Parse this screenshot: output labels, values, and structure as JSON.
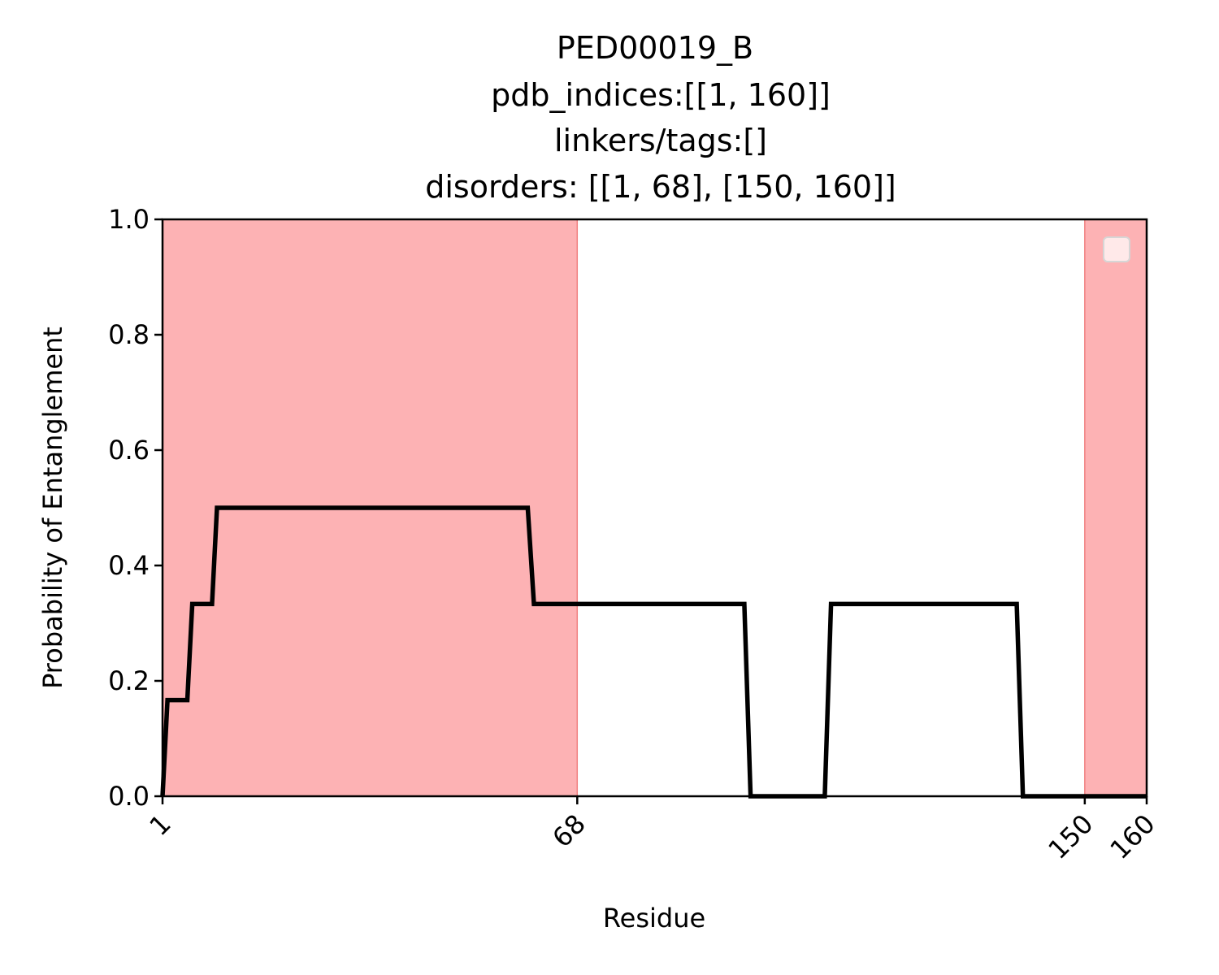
{
  "chart_data": {
    "type": "line",
    "title_lines": [
      "PED00019_B",
      "pdb_indices:[[1, 160]]",
      "linkers/tags:[]",
      "disorders: [[1, 68], [150, 160]]"
    ],
    "xlabel": "Residue",
    "ylabel": "Probability of Entanglement",
    "xlim": [
      1,
      160
    ],
    "ylim": [
      0,
      1.0
    ],
    "x_ticks": [
      1,
      68,
      150,
      160
    ],
    "x_tick_labels": [
      "1",
      "68",
      "150",
      "160"
    ],
    "y_ticks": [
      0.0,
      0.2,
      0.4,
      0.6,
      0.8,
      1.0
    ],
    "y_tick_labels": [
      "0.0",
      "0.2",
      "0.4",
      "0.6",
      "0.8",
      "1.0"
    ],
    "x_tick_rotation_deg": -45,
    "grid": false,
    "legend": {
      "placement": "upper-right",
      "entries": []
    },
    "shaded_regions": [
      {
        "x0": 1,
        "x1": 68,
        "color": "#fdb2b4"
      },
      {
        "x0": 150,
        "x1": 160,
        "color": "#fdb2b4"
      }
    ],
    "series": [
      {
        "color": "#000000",
        "x": [
          1,
          1.8,
          5,
          5.8,
          9,
          9.8,
          60,
          61,
          95,
          96,
          108,
          109,
          139,
          140,
          160
        ],
        "y": [
          0,
          0.1667,
          0.1667,
          0.3333,
          0.3333,
          0.5,
          0.5,
          0.3333,
          0.3333,
          0,
          0,
          0.3333,
          0.3333,
          0,
          0
        ]
      }
    ]
  }
}
